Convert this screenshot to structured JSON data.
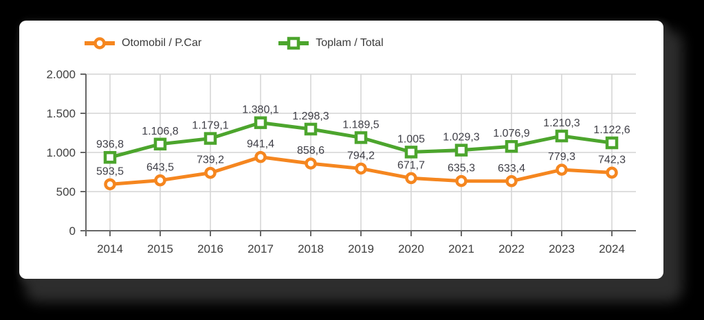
{
  "page": {
    "background_color": "#000000",
    "card_background_color": "#ffffff"
  },
  "legend": {
    "position": "top",
    "items": [
      {
        "label": "Otomobil / P.Car",
        "marker": "circle",
        "color": "#F5861F"
      },
      {
        "label": "Toplam / Total",
        "marker": "square",
        "color": "#4CA52D"
      }
    ]
  },
  "chart_data": {
    "type": "line",
    "title": "",
    "xlabel": "",
    "ylabel": "",
    "categories": [
      "2014",
      "2015",
      "2016",
      "2017",
      "2018",
      "2019",
      "2020",
      "2021",
      "2022",
      "2023",
      "2024"
    ],
    "series": [
      {
        "name": "Otomobil / P.Car",
        "color": "#F5861F",
        "marker": "circle",
        "values": [
          593.5,
          643.5,
          739.2,
          941.4,
          858.6,
          794.2,
          671.7,
          635.3,
          633.4,
          779.3,
          742.3
        ],
        "labels": [
          "593,5",
          "643,5",
          "739,2",
          "941,4",
          "858,6",
          "794,2",
          "671,7",
          "635,3",
          "633,4",
          "779,3",
          "742,3"
        ]
      },
      {
        "name": "Toplam / Total",
        "color": "#4CA52D",
        "marker": "square",
        "values": [
          936.8,
          1106.8,
          1179.1,
          1380.1,
          1298.3,
          1189.5,
          1005,
          1029.3,
          1076.9,
          1210.3,
          1122.6
        ],
        "labels": [
          "936,8",
          "1.106,8",
          "1.179,1",
          "1.380,1",
          "1.298,3",
          "1.189,5",
          "1.005",
          "1.029,3",
          "1.076,9",
          "1.210,3",
          "1.122,6"
        ]
      }
    ],
    "ylim": [
      0,
      2000
    ],
    "yticks": [
      {
        "value": 0,
        "label": "0"
      },
      {
        "value": 500,
        "label": "500"
      },
      {
        "value": 1000,
        "label": "1.000"
      },
      {
        "value": 1500,
        "label": "1.500"
      },
      {
        "value": 2000,
        "label": "2.000"
      }
    ],
    "grid": true,
    "legend_position": "top",
    "style": {
      "grid_color": "#d3d3d3",
      "axis_color": "#666666",
      "text_color": "#404040",
      "data_label_color": "#3f3f47",
      "line_width": 5,
      "marker_fill": "#ffffff"
    }
  }
}
